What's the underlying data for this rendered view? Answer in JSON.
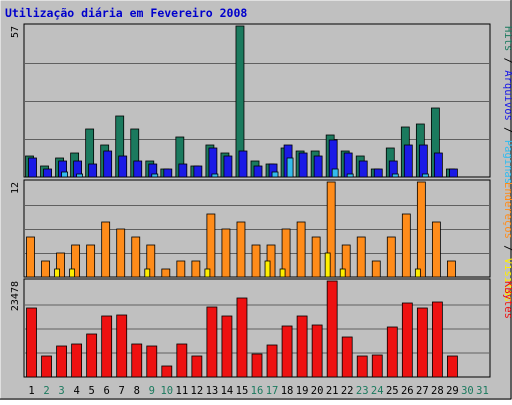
{
  "colors": {
    "background": "#c0c0c0",
    "title": "#0000cc",
    "hits": "#1b7a5e",
    "files": "#1a1ae6",
    "pages": "#33bbee",
    "visits": "#ffee00",
    "sites": "#ff8c1a",
    "kbytes": "#ee1111",
    "weekend_day": "#1b7a5e",
    "weekday": "#000000"
  },
  "chart_data": {
    "type": "bar",
    "title": "Utilização diária em Fevereiro 2008",
    "x": [
      "1",
      "2",
      "3",
      "4",
      "5",
      "6",
      "7",
      "8",
      "9",
      "10",
      "11",
      "12",
      "13",
      "14",
      "15",
      "16",
      "17",
      "18",
      "19",
      "20",
      "21",
      "22",
      "23",
      "24",
      "25",
      "26",
      "27",
      "28",
      "29",
      "30",
      "31"
    ],
    "weekend_days": [
      "2",
      "3",
      "9",
      "10",
      "16",
      "17",
      "23",
      "24",
      "30",
      "31"
    ],
    "panels": [
      {
        "id": "top",
        "ymax": 57,
        "ymax_label": "57",
        "right_labels": [
          {
            "text": "Hits",
            "color_key": "hits"
          },
          {
            "text": " / ",
            "color_key": "weekday"
          },
          {
            "text": "Arquivos",
            "color_key": "files"
          },
          {
            "text": " / ",
            "color_key": "weekday"
          },
          {
            "text": "Páginas",
            "color_key": "pages"
          }
        ],
        "series": [
          {
            "name": "Hits",
            "color_key": "hits",
            "values": [
              8,
              4,
              7,
              9,
              18,
              12,
              23,
              18,
              6,
              3,
              15,
              4,
              12,
              9,
              57,
              6,
              5,
              11,
              10,
              10,
              16,
              10,
              8,
              3,
              11,
              19,
              20,
              26,
              3
            ]
          },
          {
            "name": "Arquivos",
            "color_key": "files",
            "values": [
              7,
              3,
              6,
              6,
              5,
              10,
              8,
              6,
              5,
              3,
              5,
              4,
              11,
              8,
              10,
              4,
              5,
              12,
              9,
              8,
              14,
              9,
              6,
              3,
              6,
              12,
              12,
              9,
              3
            ]
          },
          {
            "name": "Páginas",
            "color_key": "pages",
            "values": [
              0,
              0,
              2,
              1,
              0,
              0,
              0,
              0,
              1,
              0,
              0,
              0,
              1,
              0,
              0,
              0,
              2,
              7,
              0,
              0,
              3,
              1,
              0,
              0,
              1,
              0,
              1,
              0,
              0
            ]
          }
        ]
      },
      {
        "id": "middle",
        "ymax": 12,
        "ymax_label": "12",
        "right_labels": [
          {
            "text": "Endereços",
            "color_key": "sites"
          },
          {
            "text": " / ",
            "color_key": "weekday"
          },
          {
            "text": "Visitas",
            "color_key": "visits"
          }
        ],
        "series": [
          {
            "name": "Endereços",
            "color_key": "sites",
            "values": [
              5,
              2,
              3,
              4,
              4,
              7,
              6,
              5,
              4,
              1,
              2,
              2,
              8,
              6,
              7,
              4,
              4,
              6,
              7,
              5,
              12,
              4,
              5,
              2,
              5,
              8,
              12,
              7,
              2
            ]
          },
          {
            "name": "Visitas",
            "color_key": "visits",
            "values": [
              0,
              0,
              1,
              1,
              0,
              0,
              0,
              0,
              1,
              0,
              0,
              0,
              1,
              0,
              0,
              0,
              2,
              1,
              0,
              0,
              3,
              1,
              0,
              0,
              0,
              0,
              1,
              0,
              0
            ]
          }
        ]
      },
      {
        "id": "bottom",
        "ymax": 23478,
        "ymax_label": "23478",
        "right_labels": [
          {
            "text": "KBytes",
            "color_key": "kbytes"
          }
        ],
        "series": [
          {
            "name": "KBytes",
            "color_key": "kbytes",
            "values": [
              16800,
              5200,
              7600,
              8000,
              10400,
              14800,
              15200,
              8000,
              7600,
              2600,
              8000,
              5200,
              17200,
              14800,
              19300,
              5600,
              7800,
              12400,
              14800,
              12600,
              23478,
              9800,
              5200,
              5400,
              12200,
              18000,
              16800,
              18300,
              5200
            ]
          }
        ]
      }
    ]
  }
}
